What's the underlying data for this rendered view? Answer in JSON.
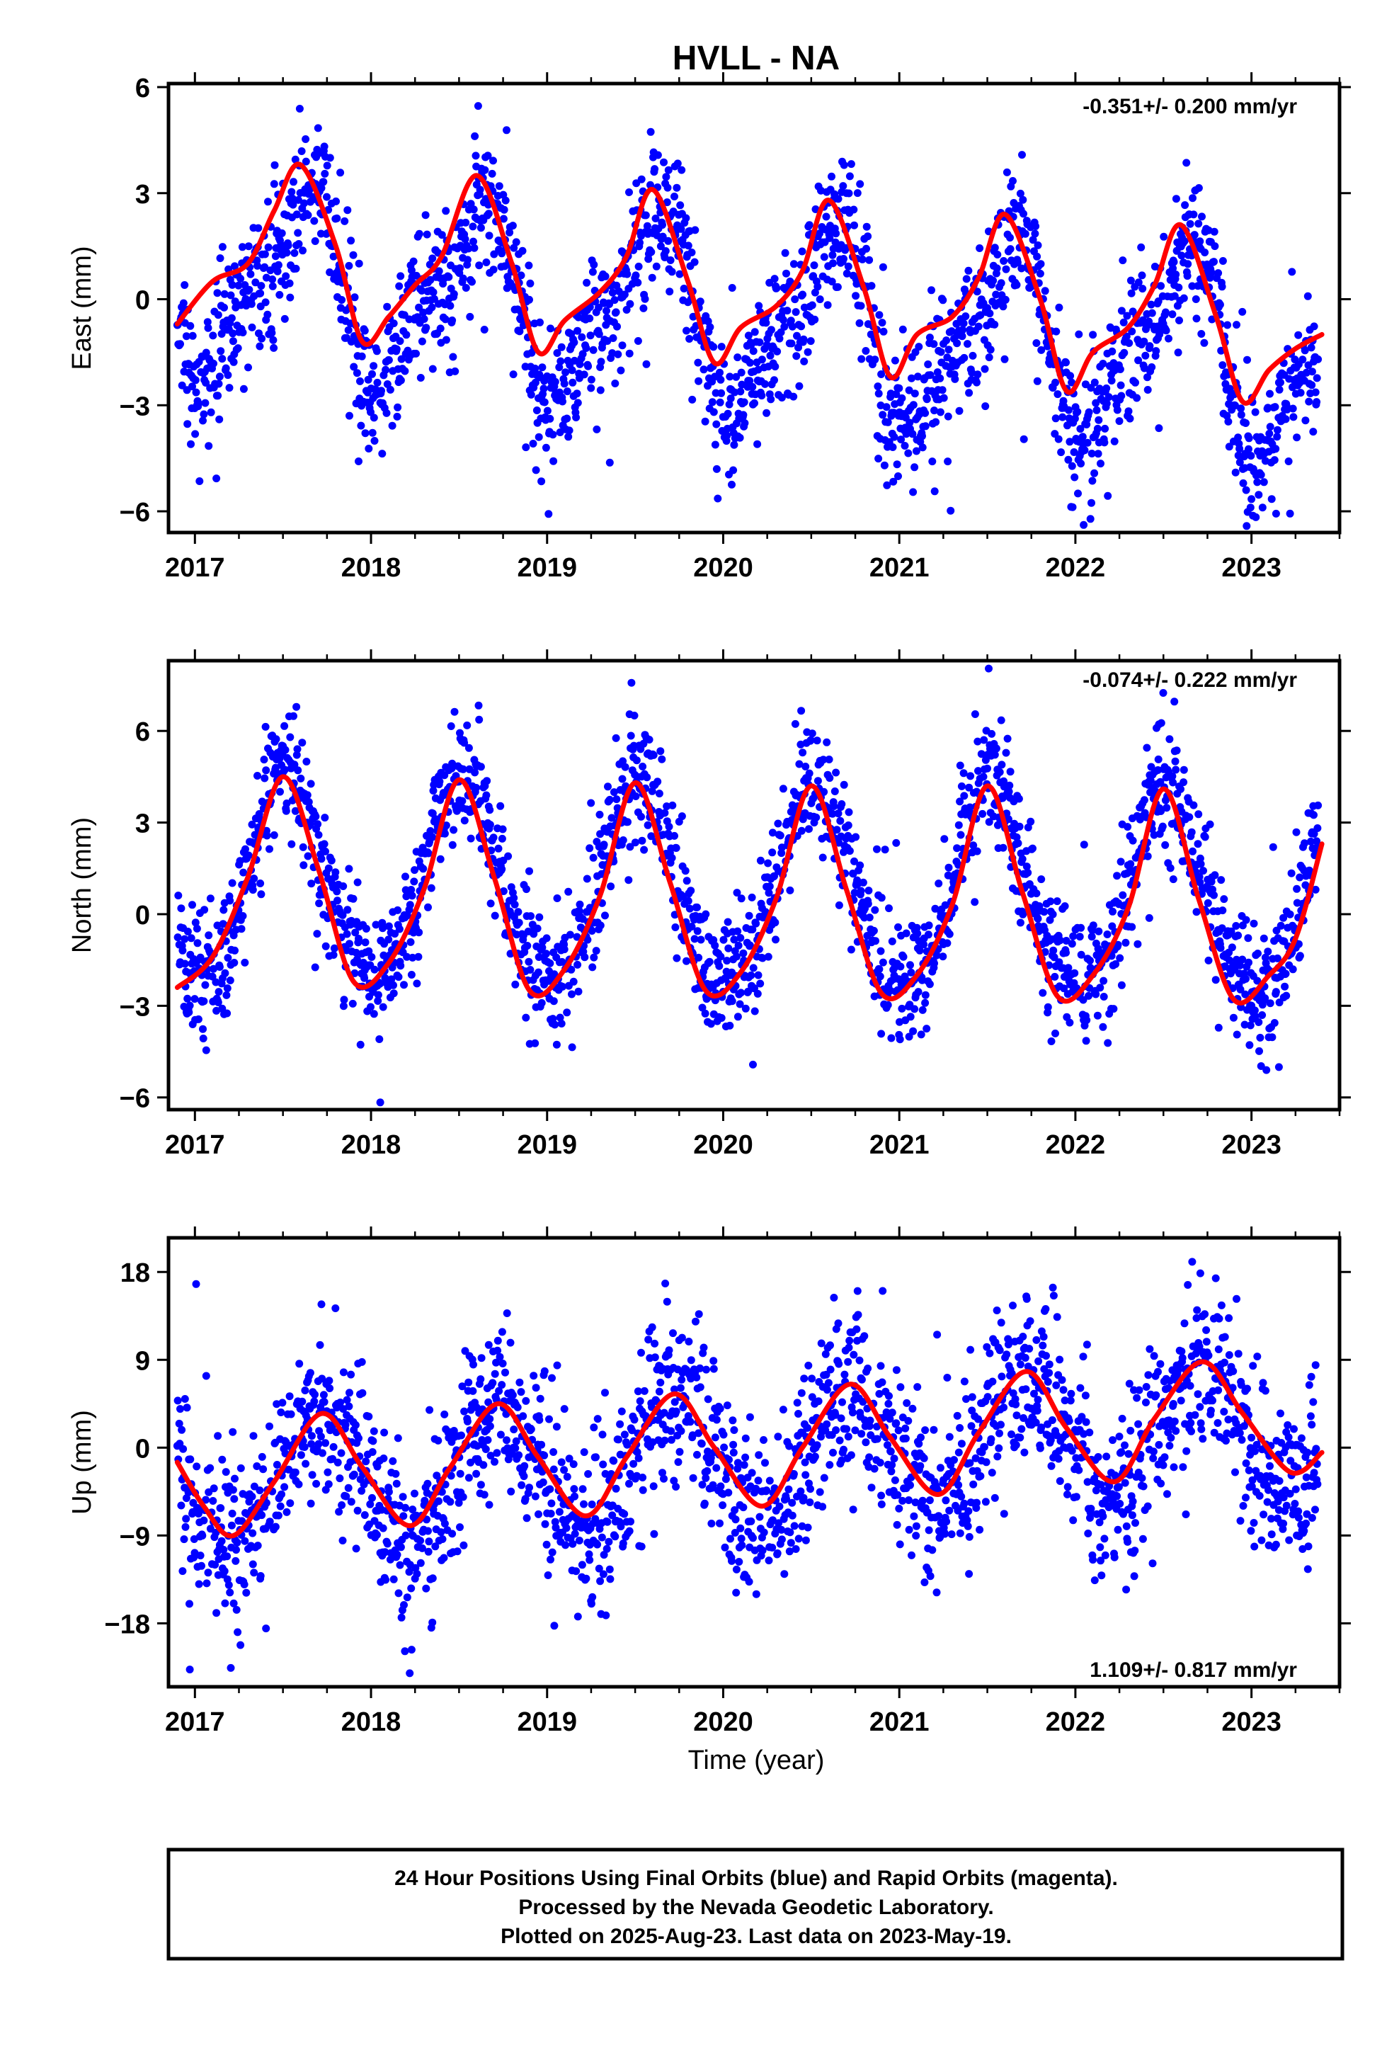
{
  "title": "HVLL - NA",
  "x_axis_label": "Time (year)",
  "footer": {
    "line1": "24 Hour Positions Using Final Orbits (blue) and Rapid Orbits (magenta).",
    "line2": "Processed by the Nevada Geodetic Laboratory.",
    "line3": "Plotted on 2025-Aug-23. Last data on 2023-May-19."
  },
  "colors": {
    "points": "#0000ff",
    "fit": "#ff0000",
    "axes": "#000000"
  },
  "chart_data": [
    {
      "type": "scatter",
      "component": "East",
      "ylabel": "East (mm)",
      "rate_label": "-0.351+/- 0.200 mm/yr",
      "xlim": [
        2016.85,
        2023.5
      ],
      "ylim": [
        -6.6,
        6.1
      ],
      "yticks": [
        6,
        3,
        0,
        -3,
        -6
      ],
      "ytick_labels": [
        "6",
        "3",
        "0",
        "−3",
        "−6"
      ],
      "xticks": [
        2017,
        2018,
        2019,
        2020,
        2021,
        2022,
        2023
      ],
      "model": {
        "offset": -0.5,
        "trend": -0.351,
        "ref_year": 2020,
        "annual_amp": 2.4,
        "annual_peak": 2017.6,
        "semi_amp": 0.9,
        "semi_peak": 2017.72,
        "noise_sd": 1.0
      },
      "fit_curve": {
        "x": [
          2016.9,
          2017.1,
          2017.3,
          2017.45,
          2017.6,
          2017.8,
          2017.95,
          2018.1,
          2018.25,
          2018.4,
          2018.6,
          2018.8,
          2018.95,
          2019.1,
          2019.3,
          2019.45,
          2019.6,
          2019.8,
          2019.95,
          2020.1,
          2020.3,
          2020.45,
          2020.6,
          2020.8,
          2020.95,
          2021.1,
          2021.3,
          2021.45,
          2021.6,
          2021.8,
          2021.95,
          2022.1,
          2022.3,
          2022.45,
          2022.6,
          2022.8,
          2022.95,
          2023.1,
          2023.25,
          2023.4
        ],
        "y": [
          -0.7,
          0.5,
          1.0,
          2.5,
          3.8,
          1.5,
          -1.2,
          -0.5,
          0.4,
          1.2,
          3.5,
          1.0,
          -1.5,
          -0.6,
          0.2,
          1.2,
          3.1,
          0.5,
          -1.8,
          -0.8,
          -0.2,
          0.8,
          2.8,
          0.3,
          -2.2,
          -1.0,
          -0.5,
          0.6,
          2.4,
          0.0,
          -2.6,
          -1.5,
          -0.8,
          0.4,
          2.1,
          -0.5,
          -2.9,
          -2.0,
          -1.4,
          -1.0
        ]
      }
    },
    {
      "type": "scatter",
      "component": "North",
      "ylabel": "North (mm)",
      "rate_label": "-0.074+/- 0.222 mm/yr",
      "xlim": [
        2016.85,
        2023.5
      ],
      "ylim": [
        -6.4,
        8.3
      ],
      "yticks": [
        6,
        3,
        0,
        -3,
        -6
      ],
      "ytick_labels": [
        "6",
        "3",
        "0",
        "−3",
        "−6"
      ],
      "xticks": [
        2017,
        2018,
        2019,
        2020,
        2021,
        2022,
        2023
      ],
      "model": {
        "offset": 0.8,
        "trend": -0.074,
        "ref_year": 2020,
        "annual_amp": 3.4,
        "annual_peak": 2017.52,
        "semi_amp": 0.4,
        "semi_peak": 2017.5,
        "noise_sd": 1.05
      },
      "fit_curve": {
        "x": [
          2016.9,
          2017.1,
          2017.3,
          2017.5,
          2017.7,
          2017.9,
          2018.1,
          2018.3,
          2018.5,
          2018.7,
          2018.9,
          2019.1,
          2019.3,
          2019.5,
          2019.7,
          2019.9,
          2020.1,
          2020.3,
          2020.5,
          2020.7,
          2020.9,
          2021.1,
          2021.3,
          2021.5,
          2021.7,
          2021.9,
          2022.1,
          2022.3,
          2022.5,
          2022.7,
          2022.9,
          2023.1,
          2023.25,
          2023.4
        ],
        "y": [
          -2.4,
          -1.4,
          1.2,
          4.5,
          1.5,
          -2.2,
          -1.6,
          0.8,
          4.4,
          1.2,
          -2.5,
          -1.8,
          0.6,
          4.3,
          1.0,
          -2.5,
          -1.9,
          0.5,
          4.2,
          0.8,
          -2.6,
          -2.0,
          0.3,
          4.2,
          0.7,
          -2.7,
          -2.0,
          0.2,
          4.1,
          0.5,
          -2.8,
          -2.0,
          -0.8,
          2.3
        ]
      }
    },
    {
      "type": "scatter",
      "component": "Up",
      "ylabel": "Up (mm)",
      "rate_label": "1.109+/- 0.817 mm/yr",
      "xlim": [
        2016.85,
        2023.5
      ],
      "ylim": [
        -24.5,
        21.5
      ],
      "yticks": [
        18,
        9,
        0,
        -9,
        -18
      ],
      "ytick_labels": [
        "18",
        "9",
        "0",
        "−9",
        "−18"
      ],
      "xticks": [
        2017,
        2018,
        2019,
        2020,
        2021,
        2022,
        2023
      ],
      "model": {
        "offset": -1.0,
        "trend": 1.109,
        "ref_year": 2020,
        "annual_amp": 6.4,
        "annual_peak": 2017.72,
        "semi_amp": 0.0,
        "semi_peak": 2017.5,
        "noise_sd": 4.4
      },
      "fit_curve": {
        "x": [
          2016.9,
          2017.05,
          2017.22,
          2017.45,
          2017.72,
          2017.95,
          2018.22,
          2018.45,
          2018.72,
          2018.95,
          2019.22,
          2019.45,
          2019.72,
          2019.95,
          2020.22,
          2020.45,
          2020.72,
          2020.95,
          2021.22,
          2021.45,
          2021.72,
          2021.95,
          2022.22,
          2022.45,
          2022.72,
          2022.95,
          2023.22,
          2023.4
        ],
        "y": [
          -1.5,
          -6.0,
          -9.0,
          -3.5,
          3.5,
          -2.0,
          -8.0,
          -2.0,
          4.5,
          -1.0,
          -7.0,
          -1.0,
          5.5,
          0.0,
          -6.0,
          0.0,
          6.5,
          1.0,
          -4.8,
          1.5,
          7.8,
          2.0,
          -3.5,
          3.0,
          8.8,
          3.5,
          -2.5,
          -0.5
        ]
      }
    }
  ]
}
